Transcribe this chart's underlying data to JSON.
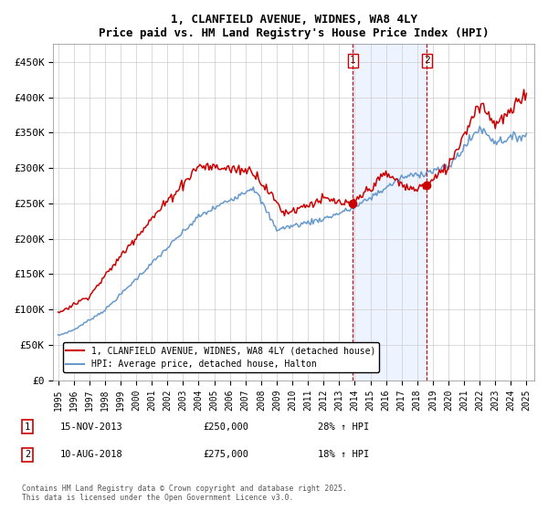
{
  "title": "1, CLANFIELD AVENUE, WIDNES, WA8 4LY",
  "subtitle": "Price paid vs. HM Land Registry's House Price Index (HPI)",
  "ylim": [
    0,
    475000
  ],
  "yticks": [
    0,
    50000,
    100000,
    150000,
    200000,
    250000,
    300000,
    350000,
    400000,
    450000
  ],
  "ytick_labels": [
    "£0",
    "£50K",
    "£100K",
    "£150K",
    "£200K",
    "£250K",
    "£300K",
    "£350K",
    "£400K",
    "£450K"
  ],
  "legend_line1": "1, CLANFIELD AVENUE, WIDNES, WA8 4LY (detached house)",
  "legend_line2": "HPI: Average price, detached house, Halton",
  "annotation1_date": "15-NOV-2013",
  "annotation1_price": "£250,000",
  "annotation1_hpi": "28% ↑ HPI",
  "annotation2_date": "10-AUG-2018",
  "annotation2_price": "£275,000",
  "annotation2_hpi": "18% ↑ HPI",
  "footer": "Contains HM Land Registry data © Crown copyright and database right 2025.\nThis data is licensed under the Open Government Licence v3.0.",
  "red_color": "#cc0000",
  "blue_color": "#6699cc",
  "shade_color": "#cce0ff",
  "vline_color": "#cc0000",
  "marker1_x": 2013.88,
  "marker1_y": 250000,
  "marker2_x": 2018.61,
  "marker2_y": 275000,
  "xtick_positions": [
    1995,
    1996,
    1997,
    1998,
    1999,
    2000,
    2001,
    2002,
    2003,
    2004,
    2005,
    2006,
    2007,
    2008,
    2009,
    2010,
    2011,
    2012,
    2013,
    2014,
    2015,
    2016,
    2017,
    2018,
    2019,
    2020,
    2021,
    2022,
    2023,
    2024,
    2025
  ],
  "xlim": [
    1994.7,
    2025.5
  ]
}
